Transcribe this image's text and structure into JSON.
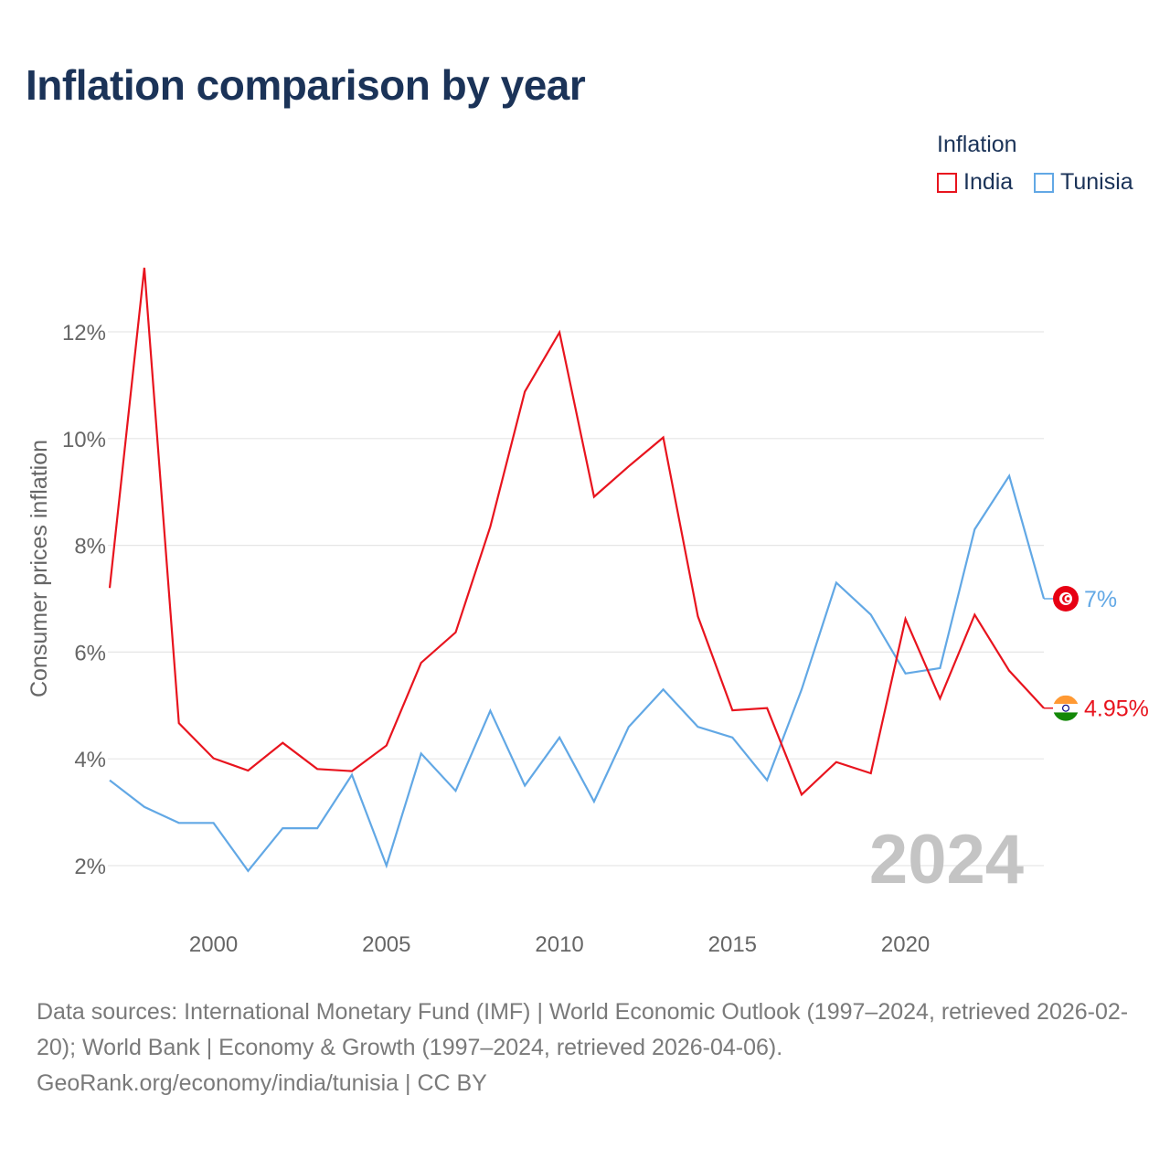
{
  "title": "Inflation comparison by year",
  "legend": {
    "title": "Inflation",
    "items": [
      {
        "label": "India",
        "color": "#e8141e"
      },
      {
        "label": "Tunisia",
        "color": "#62a8e5"
      }
    ]
  },
  "chart_data": {
    "type": "line",
    "title": "Inflation comparison by year",
    "ylabel": "Consumer prices inflation",
    "xlabel": "",
    "x": [
      1997,
      1998,
      1999,
      2000,
      2001,
      2002,
      2003,
      2004,
      2005,
      2006,
      2007,
      2008,
      2009,
      2010,
      2011,
      2012,
      2013,
      2014,
      2015,
      2016,
      2017,
      2018,
      2019,
      2020,
      2021,
      2022,
      2023,
      2024
    ],
    "xlim": [
      1997,
      2024
    ],
    "ylim": [
      1.0,
      13.5
    ],
    "xticks": [
      2000,
      2005,
      2010,
      2015,
      2020
    ],
    "xtick_labels": [
      "2000",
      "2005",
      "2010",
      "2015",
      "2020"
    ],
    "yticks": [
      2,
      4,
      6,
      8,
      10,
      12
    ],
    "ytick_labels": [
      "2%",
      "4%",
      "6%",
      "8%",
      "10%",
      "12%"
    ],
    "grid": true,
    "series": [
      {
        "name": "India",
        "color": "#e8141e",
        "values": [
          7.2,
          13.2,
          4.67,
          4.01,
          3.78,
          4.3,
          3.81,
          3.77,
          4.25,
          5.8,
          6.37,
          8.35,
          10.88,
          11.99,
          8.91,
          9.48,
          10.02,
          6.67,
          4.91,
          4.95,
          3.33,
          3.94,
          3.73,
          6.62,
          5.13,
          6.7,
          5.65,
          4.95
        ],
        "end_label": "4.95%",
        "flag": "india-flag"
      },
      {
        "name": "Tunisia",
        "color": "#62a8e5",
        "values": [
          3.6,
          3.1,
          2.8,
          2.8,
          1.9,
          2.7,
          2.7,
          3.7,
          2.0,
          4.1,
          3.4,
          4.9,
          3.5,
          4.4,
          3.2,
          4.6,
          5.3,
          4.6,
          4.4,
          3.6,
          5.3,
          7.3,
          6.7,
          5.6,
          5.7,
          8.3,
          9.3,
          7.0
        ],
        "end_label": "7%",
        "flag": "tunisia-flag"
      }
    ],
    "year_watermark": "2024"
  },
  "source": {
    "line1": "Data sources: International Monetary Fund (IMF) | World Economic Outlook (1997–2024, retrieved 2026-02-20); World Bank | Economy & Growth (1997–2024, retrieved 2026-04-06).",
    "line2": "GeoRank.org/economy/india/tunisia | CC BY"
  }
}
